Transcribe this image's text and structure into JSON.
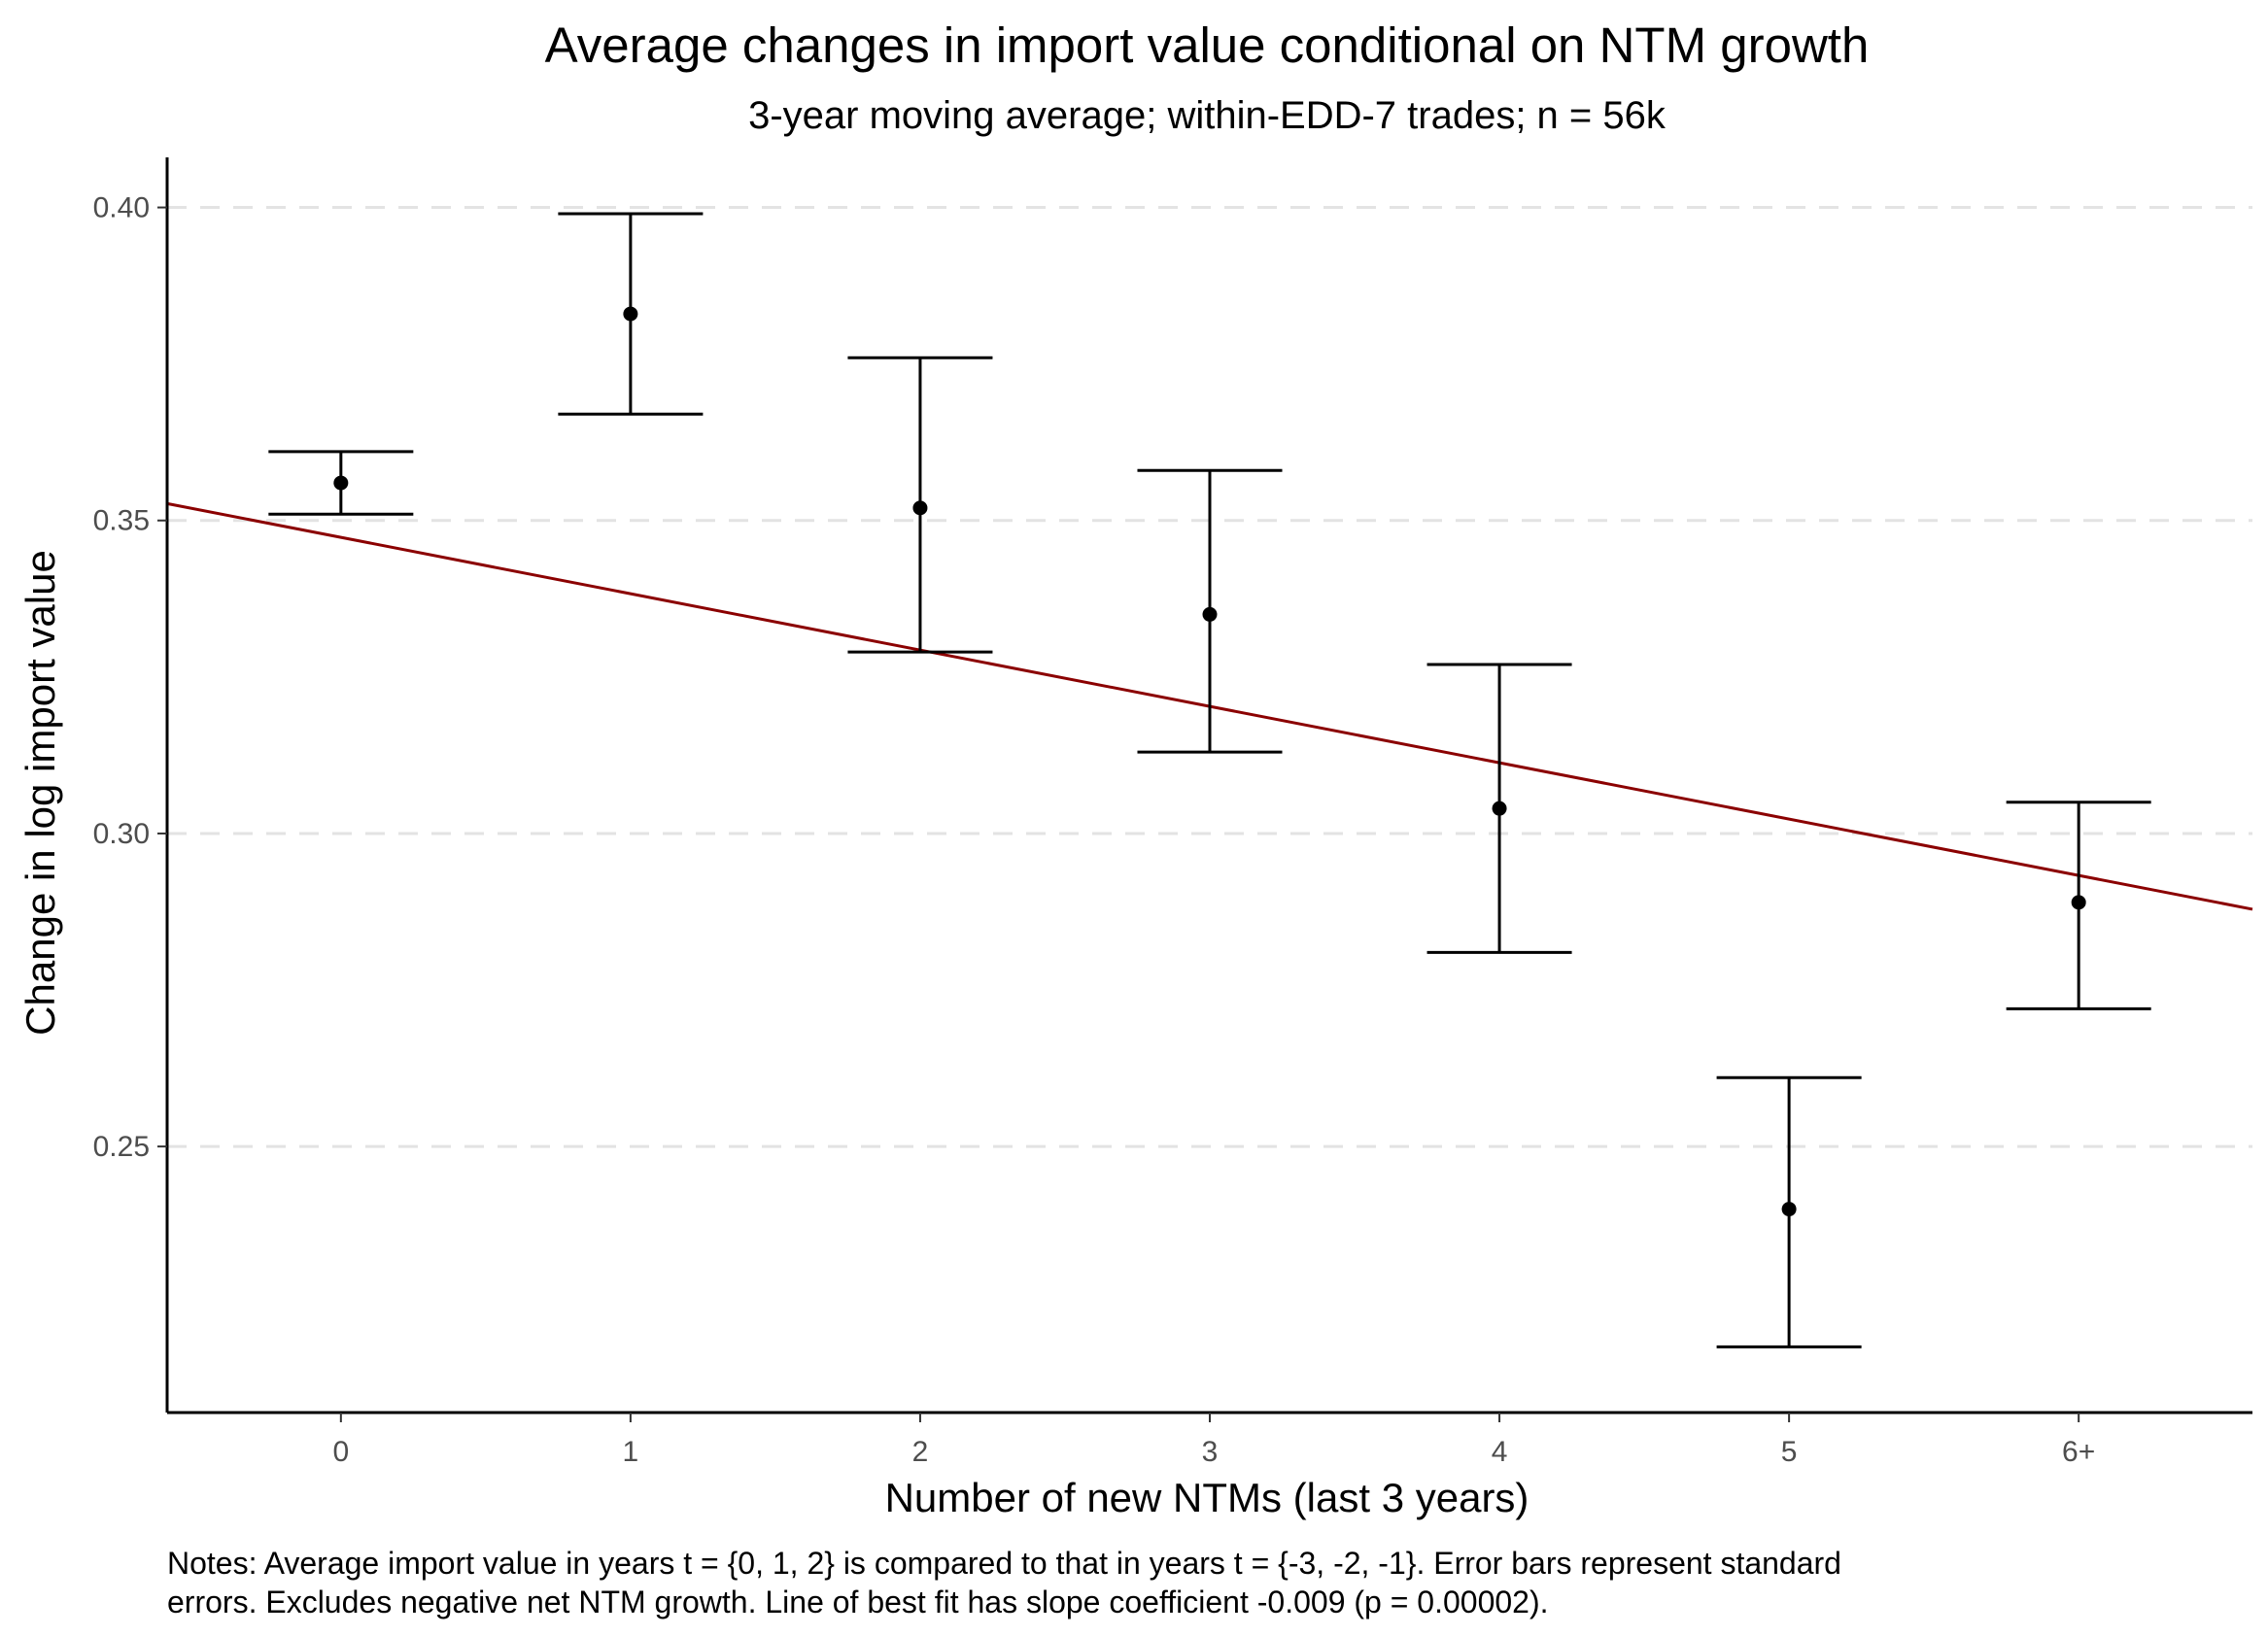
{
  "chart_data": {
    "type": "scatter",
    "title": "Average changes in import value conditional on NTM growth",
    "subtitle": "3-year moving average; within-EDD-7 trades; n = 56k",
    "xlabel": "Number of new NTMs (last 3 years)",
    "ylabel": "Change in log import value",
    "categories": [
      "0",
      "1",
      "2",
      "3",
      "4",
      "5",
      "6+"
    ],
    "x_positions": [
      0,
      1,
      2,
      3,
      4,
      5,
      6
    ],
    "xlim": [
      -0.6,
      6.6
    ],
    "ylim": [
      0.2075,
      0.408
    ],
    "yticks": [
      0.25,
      0.3,
      0.35,
      0.4
    ],
    "ytick_labels": [
      "0.25",
      "0.30",
      "0.35",
      "0.40"
    ],
    "grid": "horizontal dashed at major y ticks",
    "series": [
      {
        "values": [
          0.356,
          0.383,
          0.352,
          0.335,
          0.304,
          0.24,
          0.289
        ],
        "error_low": [
          0.351,
          0.367,
          0.329,
          0.313,
          0.281,
          0.218,
          0.272
        ],
        "error_high": [
          0.361,
          0.399,
          0.376,
          0.358,
          0.327,
          0.261,
          0.305
        ],
        "color": "#000000"
      }
    ],
    "fit_line": {
      "slope": -0.009,
      "intercept": 0.3473,
      "color": "#8b0000"
    },
    "notes": [
      "Notes: Average import value in years t = {0, 1, 2} is compared to that in years t = {-3, -2, -1}. Error bars represent standard",
      "errors. Excludes negative net NTM growth. Line of best fit has slope coefficient -0.009 (p = 0.00002)."
    ]
  }
}
